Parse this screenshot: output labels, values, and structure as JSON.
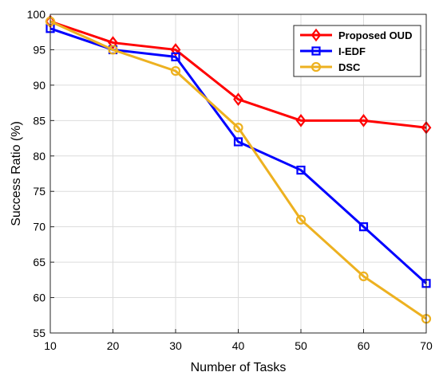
{
  "chart_data": {
    "type": "line",
    "xlabel": "Number of Tasks",
    "ylabel": "Success Ratio (%)",
    "x": [
      10,
      20,
      30,
      40,
      50,
      60,
      70
    ],
    "xlim": [
      10,
      70
    ],
    "ylim": [
      55,
      100
    ],
    "xticks": [
      "10",
      "20",
      "30",
      "40",
      "50",
      "60",
      "70"
    ],
    "yticks": [
      "55",
      "60",
      "65",
      "70",
      "75",
      "80",
      "85",
      "90",
      "95",
      "100"
    ],
    "grid": true,
    "legend_position": "top-right",
    "series": [
      {
        "name": "Proposed OUD",
        "color": "#ff0000",
        "marker": "diamond",
        "values": [
          99,
          96,
          95,
          88,
          85,
          85,
          84
        ]
      },
      {
        "name": "I-EDF",
        "color": "#0000ff",
        "marker": "square",
        "values": [
          98,
          95,
          94,
          82,
          78,
          70,
          62
        ]
      },
      {
        "name": "DSC",
        "color": "#edb120",
        "marker": "circle",
        "values": [
          99,
          95,
          92,
          84,
          71,
          63,
          57
        ]
      }
    ]
  }
}
